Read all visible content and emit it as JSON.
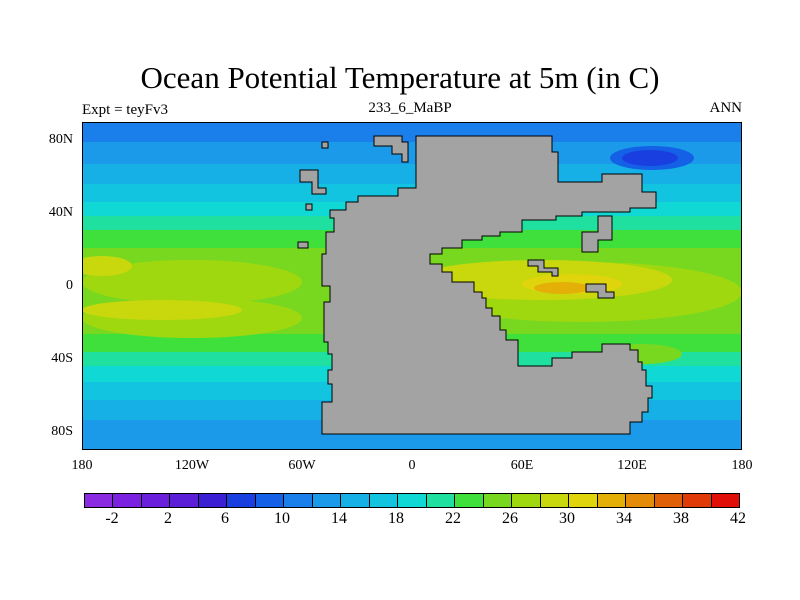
{
  "title": "Ocean Potential Temperature at 5m (in C)",
  "left_label": "Expt = teyFv3",
  "center_label": "233_6_MaBP",
  "right_label": "ANN",
  "map": {
    "lat_ticks": [
      "80N",
      "40N",
      "0",
      "40S",
      "80S"
    ],
    "lon_ticks": [
      "180",
      "120W",
      "60W",
      "0",
      "60E",
      "120E",
      "180"
    ],
    "land_color": "#a3a3a3"
  },
  "colorbar": {
    "colors": [
      "#8a2be2",
      "#7a22df",
      "#6a1fdc",
      "#5a1fd6",
      "#3b1fd4",
      "#1a3fe0",
      "#1460e6",
      "#1a7fea",
      "#1a9ae8",
      "#16b0e6",
      "#12c4e0",
      "#10d8d4",
      "#20e0a0",
      "#40e03c",
      "#78d820",
      "#a0d810",
      "#c8d80c",
      "#e0d40c",
      "#e4b008",
      "#e48c08",
      "#e06008",
      "#e03a08",
      "#e01008"
    ],
    "labels": [
      "-2",
      "2",
      "6",
      "10",
      "14",
      "18",
      "22",
      "26",
      "30",
      "34",
      "38",
      "42"
    ]
  }
}
